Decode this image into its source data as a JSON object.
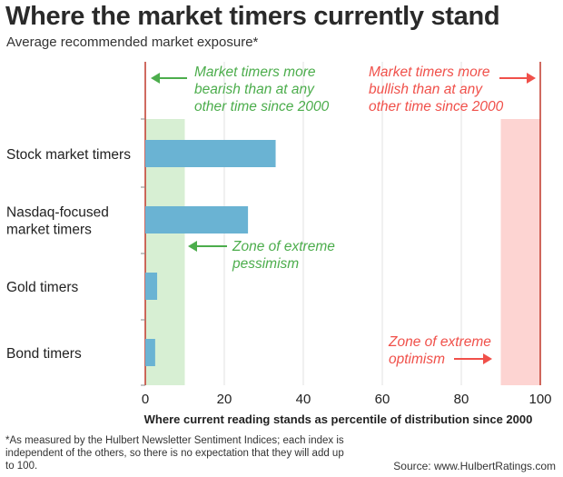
{
  "header": {
    "title": "Where the market timers currently stand",
    "subtitle": "Average recommended market exposure*"
  },
  "chart_data": {
    "type": "bar",
    "orientation": "horizontal",
    "categories": [
      [
        "Stock market timers"
      ],
      [
        "Nasdaq-focused",
        "market timers"
      ],
      [
        "Gold timers"
      ],
      [
        "Bond timers"
      ]
    ],
    "values": [
      33,
      26,
      3,
      2.5
    ],
    "xlabel": "Where current reading stands as percentile of distribution since 2000",
    "xlim": [
      0,
      100
    ],
    "xticks": [
      0,
      20,
      40,
      60,
      80,
      100
    ],
    "grid": "vertical",
    "zones": [
      {
        "name": "pessimism",
        "from": 0,
        "to": 10,
        "color": "#d7efd3"
      },
      {
        "name": "optimism",
        "from": 90,
        "to": 100,
        "color": "#fdd4d2"
      }
    ],
    "annotations": {
      "bearish": [
        "Market timers more",
        "bearish than at any",
        "other time since 2000"
      ],
      "bullish": [
        "Market timers more",
        "bullish than at any",
        "other time since 2000"
      ],
      "pessimism": [
        "Zone of extreme",
        "pessimism"
      ],
      "optimism": [
        "Zone of extreme",
        "optimism"
      ]
    }
  },
  "colors": {
    "bar": "#6ab3d3",
    "green": "#4cad4c",
    "red": "#f0504a",
    "axis": "#c0392b",
    "grid": "#e2e2e2",
    "tick_mark": "#888888"
  },
  "footnote": "*As measured by the Hulbert Newsletter Sentiment Indices; each index is independent of the others, so there is no expectation that they will add up to 100.",
  "source": "Source: www.HulbertRatings.com"
}
